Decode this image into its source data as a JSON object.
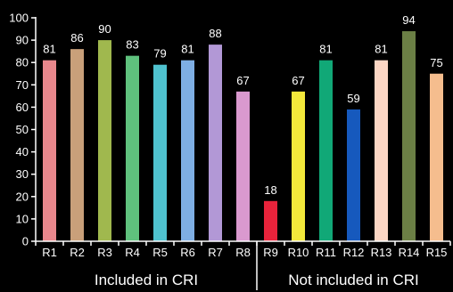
{
  "chart_data": {
    "type": "bar",
    "categories": [
      "R1",
      "R2",
      "R3",
      "R4",
      "R5",
      "R6",
      "R7",
      "R8",
      "R9",
      "R10",
      "R11",
      "R12",
      "R13",
      "R14",
      "R15"
    ],
    "values": [
      81,
      86,
      90,
      83,
      79,
      81,
      88,
      67,
      18,
      67,
      81,
      59,
      81,
      94,
      75
    ],
    "colors": [
      "#e8878c",
      "#c9a07a",
      "#a0b84e",
      "#5fc17d",
      "#4fc2cf",
      "#7eaee3",
      "#b298d6",
      "#da99cf",
      "#e8233b",
      "#f3e93b",
      "#11a877",
      "#1659bd",
      "#fcd6c4",
      "#6b7f45",
      "#f5bd8e"
    ],
    "ylim": [
      0,
      100
    ],
    "yticks": [
      0,
      10,
      20,
      30,
      40,
      50,
      60,
      70,
      80,
      90,
      100
    ],
    "groups": [
      {
        "label": "Included in CRI",
        "start": 0,
        "end": 7
      },
      {
        "label": "Not included in CRI",
        "start": 8,
        "end": 14
      }
    ],
    "title": "",
    "xlabel": "",
    "ylabel": ""
  }
}
